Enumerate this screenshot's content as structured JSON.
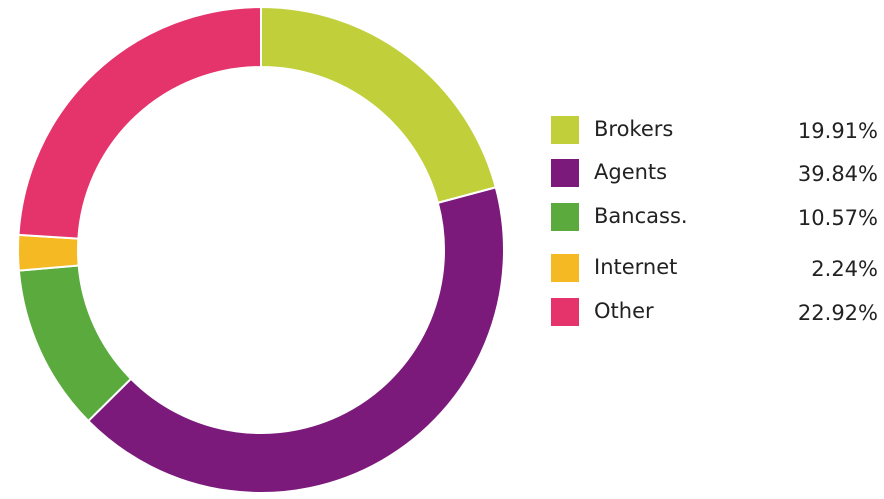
{
  "chart_data": {
    "type": "donut",
    "categories": [
      "Brokers",
      "Agents",
      "Bancass.",
      "Internet",
      "Other"
    ],
    "values": [
      19.91,
      39.84,
      10.57,
      2.24,
      22.92
    ],
    "value_labels": [
      "19.91%",
      "39.84%",
      "10.57%",
      "2.24%",
      "22.92%"
    ],
    "colors": [
      "#c0cf3a",
      "#7b1a7b",
      "#5aaa3e",
      "#f5b924",
      "#e5336b"
    ]
  }
}
